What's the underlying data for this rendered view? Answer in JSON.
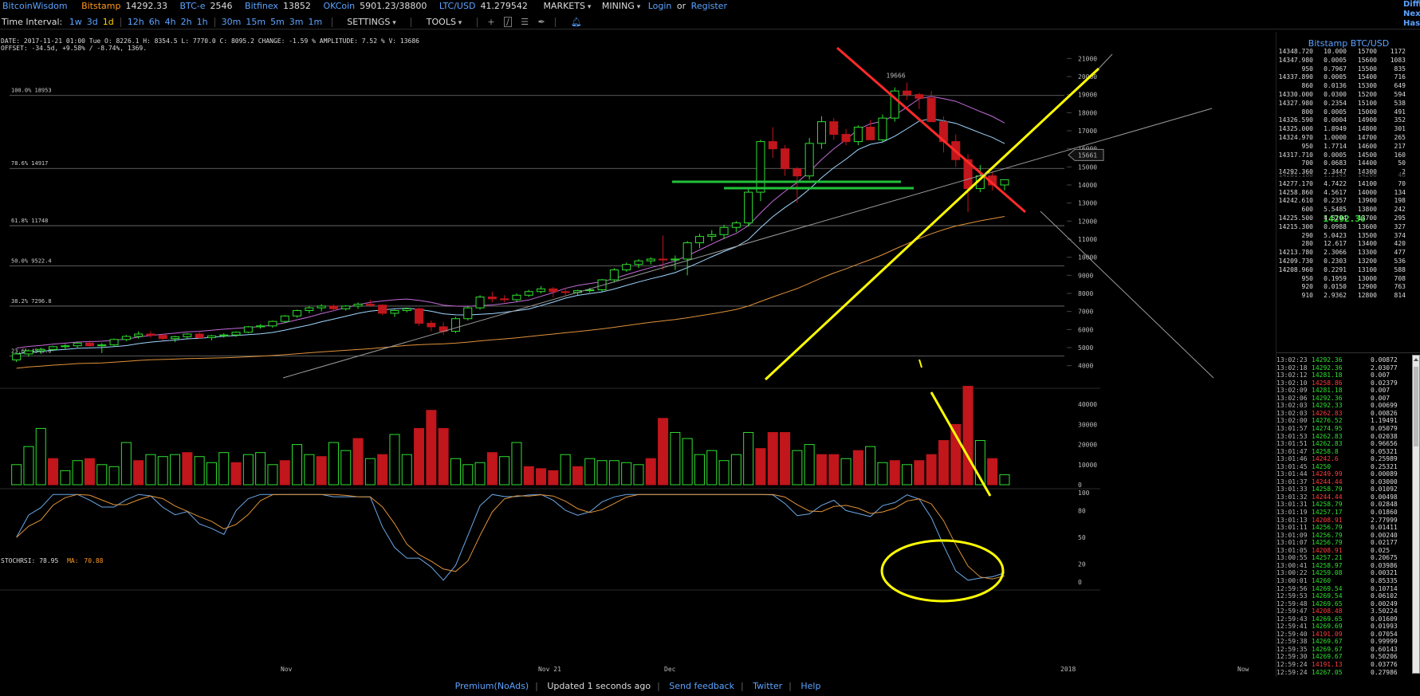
{
  "topbar": {
    "brand": "BitcoinWisdom",
    "markets": [
      {
        "name": "Bitstamp",
        "price": "14292.33"
      },
      {
        "name": "BTC-e",
        "price": "2546"
      },
      {
        "name": "Bitfinex",
        "price": "13852"
      },
      {
        "name": "OKCoin",
        "price": "5901.23/38800"
      },
      {
        "name": "LTC/USD",
        "price": "41.279542"
      }
    ],
    "menu_markets": "MARKETS",
    "menu_mining": "MINING",
    "login": "Login",
    "or": "or",
    "register": "Register"
  },
  "toolbar": {
    "label": "Time Interval:",
    "intervals": [
      "1w",
      "3d",
      "1d",
      "12h",
      "6h",
      "4h",
      "2h",
      "1h",
      "30m",
      "15m",
      "5m",
      "3m",
      "1m"
    ],
    "active_interval": "1d",
    "settings": "SETTINGS",
    "tools": "TOOLS",
    "bell_icon": "bell-icon",
    "draw_icons": [
      "crosshair-icon",
      "line-icon",
      "hline-icon",
      "brush-icon"
    ]
  },
  "info": {
    "ohlc": "DATE: 2017-11-21 01:00 Tue   O: 8226.1   H: 8354.5   L: 7770.0   C: 8095.2   CHANGE: -1.59 %   AMPLITUDE: 7.52 %   V: 13686",
    "offset": "OFFSET: -34.5d, +9.58% / -8.74%, 1369."
  },
  "chart_data": [
    {
      "type": "candlestick",
      "title": "",
      "ylim": [
        3500,
        21500
      ],
      "y_ticks": [
        4000,
        5000,
        6000,
        7000,
        8000,
        9000,
        10000,
        11000,
        12000,
        13000,
        14000,
        15000,
        16000,
        17000,
        18000,
        19000,
        20000,
        21000
      ],
      "x_labels": [
        "Nov",
        "Nov 21",
        "Dec",
        "2018",
        "Now"
      ],
      "fib_levels": [
        {
          "label": "100.0% 18953",
          "value": 18953
        },
        {
          "label": "78.6% 14917",
          "value": 14917
        },
        {
          "label": "61.8% 11748",
          "value": 11748
        },
        {
          "label": "50.0% 9522.4",
          "value": 9522.4
        },
        {
          "label": "38.2% 7296.8",
          "value": 7296.8
        },
        {
          "label": "23.6% 4543.0",
          "value": 4543.0
        }
      ],
      "high_marker": "19666",
      "current_marker": "15661",
      "candles": [
        [
          4320,
          4700,
          4200,
          4650
        ],
        [
          4650,
          4900,
          4500,
          4820
        ],
        [
          4820,
          5000,
          4650,
          4900
        ],
        [
          4900,
          5100,
          4800,
          5050
        ],
        [
          5050,
          5200,
          4900,
          5100
        ],
        [
          5100,
          5300,
          5000,
          5250
        ],
        [
          5250,
          5400,
          5050,
          5100
        ],
        [
          5100,
          5250,
          4700,
          5150
        ],
        [
          5150,
          5500,
          5050,
          5450
        ],
        [
          5450,
          5700,
          5350,
          5620
        ],
        [
          5620,
          5900,
          5500,
          5750
        ],
        [
          5750,
          5900,
          5550,
          5680
        ],
        [
          5680,
          5750,
          5400,
          5500
        ],
        [
          5500,
          5650,
          5300,
          5600
        ],
        [
          5600,
          5800,
          5500,
          5750
        ],
        [
          5750,
          5850,
          5500,
          5550
        ],
        [
          5550,
          5700,
          5400,
          5650
        ],
        [
          5650,
          5800,
          5550,
          5700
        ],
        [
          5700,
          5900,
          5600,
          5850
        ],
        [
          5850,
          6200,
          5800,
          6150
        ],
        [
          6150,
          6300,
          6050,
          6200
        ],
        [
          6200,
          6500,
          6100,
          6450
        ],
        [
          6450,
          6800,
          6350,
          6750
        ],
        [
          6750,
          7100,
          6650,
          7050
        ],
        [
          7050,
          7300,
          6900,
          7200
        ],
        [
          7200,
          7400,
          7000,
          7300
        ],
        [
          7300,
          7400,
          7000,
          7150
        ],
        [
          7150,
          7350,
          7050,
          7300
        ],
        [
          7300,
          7500,
          7150,
          7400
        ],
        [
          7400,
          7650,
          7250,
          7350
        ],
        [
          7350,
          7400,
          6800,
          6900
        ],
        [
          6900,
          7100,
          6700,
          7050
        ],
        [
          7050,
          7200,
          6950,
          7150
        ],
        [
          7150,
          7200,
          6200,
          6350
        ],
        [
          6350,
          6500,
          5900,
          6150
        ],
        [
          6150,
          6400,
          5700,
          5900
        ],
        [
          5900,
          6700,
          5800,
          6600
        ],
        [
          6600,
          7300,
          6500,
          7200
        ],
        [
          7200,
          7900,
          7100,
          7800
        ],
        [
          7800,
          8100,
          7500,
          7700
        ],
        [
          7700,
          7900,
          7500,
          7650
        ],
        [
          7650,
          8000,
          7550,
          7900
        ],
        [
          7900,
          8200,
          7800,
          8100
        ],
        [
          8100,
          8400,
          8000,
          8250
        ],
        [
          8250,
          8354,
          7770,
          8095
        ],
        [
          8095,
          8300,
          7900,
          8050
        ],
        [
          8050,
          8200,
          7900,
          8150
        ],
        [
          8150,
          8300,
          8050,
          8200
        ],
        [
          8200,
          8800,
          8100,
          8750
        ],
        [
          8750,
          9400,
          8600,
          9300
        ],
        [
          9300,
          9700,
          9200,
          9600
        ],
        [
          9600,
          9900,
          9400,
          9800
        ],
        [
          9800,
          10000,
          9600,
          9900
        ],
        [
          9900,
          11200,
          9300,
          9850
        ],
        [
          9850,
          10100,
          9300,
          9900
        ],
        [
          9900,
          10900,
          9000,
          10800
        ],
        [
          10800,
          11300,
          10500,
          11150
        ],
        [
          11150,
          11500,
          10900,
          11250
        ],
        [
          11250,
          11800,
          11000,
          11650
        ],
        [
          11650,
          12000,
          11400,
          11900
        ],
        [
          11900,
          13800,
          11700,
          13600
        ],
        [
          13600,
          16500,
          13100,
          16400
        ],
        [
          16400,
          17200,
          15500,
          16000
        ],
        [
          16000,
          16200,
          14500,
          14900
        ],
        [
          14900,
          15000,
          13000,
          14500
        ],
        [
          14500,
          16600,
          14300,
          16300
        ],
        [
          16300,
          17800,
          16000,
          17500
        ],
        [
          17500,
          17700,
          16500,
          16800
        ],
        [
          16800,
          17100,
          16200,
          16400
        ],
        [
          16400,
          17300,
          16200,
          17200
        ],
        [
          17200,
          17600,
          16600,
          16500
        ],
        [
          16500,
          17900,
          16400,
          17700
        ],
        [
          17700,
          19400,
          17500,
          19200
        ],
        [
          19200,
          19666,
          18700,
          19000
        ],
        [
          19000,
          19100,
          18200,
          18800
        ],
        [
          18800,
          19200,
          17600,
          17500
        ],
        [
          17500,
          17800,
          15800,
          16400
        ],
        [
          16400,
          16800,
          15000,
          15400
        ],
        [
          15400,
          15700,
          12500,
          13800
        ],
        [
          13800,
          15100,
          13600,
          14500
        ],
        [
          14500,
          14700,
          13700,
          14000
        ],
        [
          14000,
          14300,
          13700,
          14292
        ]
      ],
      "volume": {
        "ylim": [
          0,
          48000
        ],
        "y_ticks": [
          0,
          10000,
          20000,
          30000,
          40000
        ],
        "values": [
          10000,
          19000,
          28000,
          13000,
          7000,
          12000,
          13000,
          10000,
          9000,
          21000,
          12000,
          15000,
          14000,
          15000,
          16000,
          14000,
          11000,
          16000,
          11000,
          15000,
          16000,
          10000,
          12000,
          20000,
          15000,
          14000,
          21000,
          17000,
          23000,
          13000,
          15000,
          25000,
          15000,
          28000,
          37000,
          28000,
          13000,
          10000,
          11000,
          16000,
          14000,
          21000,
          9000,
          8000,
          7000,
          15000,
          9000,
          13000,
          12000,
          12000,
          11000,
          10000,
          13000,
          33000,
          26000,
          23000,
          15000,
          17000,
          12000,
          15000,
          26000,
          18000,
          26000,
          26000,
          17000,
          20000,
          15000,
          15000,
          13000,
          17000,
          19000,
          11000,
          12000,
          10000,
          12000,
          15000,
          22000,
          30000,
          49000,
          22000,
          13000,
          5000
        ],
        "up": [
          true,
          true,
          true,
          false,
          true,
          true,
          false,
          true,
          true,
          true,
          false,
          true,
          true,
          true,
          false,
          true,
          true,
          true,
          false,
          true,
          true,
          true,
          false,
          true,
          true,
          false,
          true,
          true,
          false,
          true,
          false,
          true,
          true,
          false,
          false,
          false,
          true,
          true,
          true,
          false,
          true,
          true,
          false,
          false,
          false,
          true,
          false,
          true,
          true,
          true,
          true,
          true,
          false,
          false,
          true,
          true,
          true,
          true,
          true,
          true,
          true,
          false,
          false,
          false,
          true,
          true,
          false,
          false,
          true,
          false,
          true,
          true,
          false,
          true,
          false,
          false,
          false,
          false,
          false,
          true,
          false,
          true
        ]
      },
      "stoch_rsi": {
        "label": "STOCHRSI:",
        "value": "78.95",
        "ma_label": "MA:",
        "ma_value": "70.88",
        "ylim": [
          0,
          100
        ],
        "y_ticks": [
          0,
          20,
          50,
          80,
          100
        ]
      }
    }
  ],
  "orderbook": {
    "title": "Bitstamp BTC/USD",
    "asks": [
      [
        "14348.720",
        "10.000",
        "15700",
        "1172"
      ],
      [
        "14347.980",
        "0.0005",
        "15600",
        "1083"
      ],
      [
        "950",
        "0.7967",
        "15500",
        "835"
      ],
      [
        "14337.890",
        "0.0005",
        "15400",
        "716"
      ],
      [
        "860",
        "0.0136",
        "15300",
        "649"
      ],
      [
        "14330.000",
        "0.0300",
        "15200",
        "594"
      ],
      [
        "14327.980",
        "0.2354",
        "15100",
        "538"
      ],
      [
        "800",
        "0.0005",
        "15000",
        "491"
      ],
      [
        "14326.590",
        "0.0004",
        "14900",
        "352"
      ],
      [
        "14325.000",
        "1.8949",
        "14800",
        "301"
      ],
      [
        "14324.970",
        "1.0000",
        "14700",
        "265"
      ],
      [
        "950",
        "1.7714",
        "14600",
        "217"
      ],
      [
        "14317.710",
        "0.0005",
        "14500",
        "160"
      ],
      [
        "700",
        "0.0683",
        "14400",
        "50"
      ],
      [
        "14292.360",
        "2.3447",
        "14300",
        "2"
      ]
    ],
    "last_price": "14292.36",
    "bids": [
      [
        "14281.180",
        "1.2145",
        "14200",
        "46"
      ],
      [
        "14277.170",
        "4.7422",
        "14100",
        "70"
      ],
      [
        "14258.860",
        "4.5617",
        "14000",
        "134"
      ],
      [
        "14242.610",
        "0.2357",
        "13900",
        "198"
      ],
      [
        "600",
        "5.5485",
        "13800",
        "242"
      ],
      [
        "14225.500",
        "4.5204",
        "13700",
        "295"
      ],
      [
        "14215.300",
        "0.0988",
        "13600",
        "327"
      ],
      [
        "290",
        "5.0423",
        "13500",
        "374"
      ],
      [
        "280",
        "12.617",
        "13400",
        "420"
      ],
      [
        "14213.780",
        "2.3066",
        "13300",
        "477"
      ],
      [
        "14209.730",
        "0.2303",
        "13200",
        "536"
      ],
      [
        "14208.960",
        "0.2291",
        "13100",
        "588"
      ],
      [
        "950",
        "0.1959",
        "13000",
        "708"
      ],
      [
        "920",
        "0.0150",
        "12900",
        "763"
      ],
      [
        "910",
        "2.9362",
        "12800",
        "814"
      ]
    ]
  },
  "trades": [
    [
      "13:02:23",
      "14292.36",
      "0.00872",
      "buy"
    ],
    [
      "13:02:18",
      "14292.36",
      "2.03077",
      "buy"
    ],
    [
      "13:02:12",
      "14281.18",
      "0.007",
      "buy"
    ],
    [
      "13:02:10",
      "14258.86",
      "0.02379",
      "sell"
    ],
    [
      "13:02:09",
      "14281.18",
      "0.007",
      "buy"
    ],
    [
      "13:02:06",
      "14292.36",
      "0.007",
      "buy"
    ],
    [
      "13:02:03",
      "14292.33",
      "0.00699",
      "buy"
    ],
    [
      "13:02:03",
      "14262.83",
      "0.00826",
      "sell"
    ],
    [
      "13:02:00",
      "14276.52",
      "1.19491",
      "buy"
    ],
    [
      "13:01:57",
      "14274.95",
      "0.05079",
      "buy"
    ],
    [
      "13:01:53",
      "14262.83",
      "0.02038",
      "buy"
    ],
    [
      "13:01:51",
      "14262.83",
      "0.96656",
      "buy"
    ],
    [
      "13:01:47",
      "14258.8",
      "0.05321",
      "buy"
    ],
    [
      "13:01:46",
      "14242.6",
      "0.25989",
      "sell"
    ],
    [
      "13:01:45",
      "14250",
      "0.25321",
      "buy"
    ],
    [
      "13:01:44",
      "14249.99",
      "0.00089",
      "sell"
    ],
    [
      "13:01:37",
      "14244.44",
      "0.03000",
      "sell"
    ],
    [
      "13:01:33",
      "14258.79",
      "0.01092",
      "buy"
    ],
    [
      "13:01:32",
      "14244.44",
      "0.00498",
      "sell"
    ],
    [
      "13:01:31",
      "14258.79",
      "0.02848",
      "buy"
    ],
    [
      "13:01:19",
      "14257.17",
      "0.01860",
      "buy"
    ],
    [
      "13:01:13",
      "14208.91",
      "2.77999",
      "sell"
    ],
    [
      "13:01:11",
      "14256.79",
      "0.01411",
      "buy"
    ],
    [
      "13:01:09",
      "14256.79",
      "0.00240",
      "buy"
    ],
    [
      "13:01:07",
      "14256.79",
      "0.02177",
      "buy"
    ],
    [
      "13:01:05",
      "14208.91",
      "0.025",
      "sell"
    ],
    [
      "13:00:55",
      "14257.21",
      "0.20675",
      "buy"
    ],
    [
      "13:00:41",
      "14258.97",
      "0.03986",
      "buy"
    ],
    [
      "13:00:22",
      "14259.08",
      "0.00321",
      "buy"
    ],
    [
      "13:00:01",
      "14260",
      "0.85335",
      "buy"
    ],
    [
      "12:59:56",
      "14269.54",
      "0.10714",
      "buy"
    ],
    [
      "12:59:53",
      "14269.54",
      "0.06102",
      "buy"
    ],
    [
      "12:59:48",
      "14269.65",
      "0.00249",
      "buy"
    ],
    [
      "12:59:47",
      "14208.48",
      "3.50224",
      "sell"
    ],
    [
      "12:59:43",
      "14269.65",
      "0.01609",
      "buy"
    ],
    [
      "12:59:41",
      "14269.69",
      "0.01993",
      "buy"
    ],
    [
      "12:59:40",
      "14191.09",
      "0.07054",
      "sell"
    ],
    [
      "12:59:38",
      "14269.67",
      "0.99999",
      "buy"
    ],
    [
      "12:59:35",
      "14269.67",
      "0.60143",
      "buy"
    ],
    [
      "12:59:30",
      "14269.67",
      "0.50206",
      "buy"
    ],
    [
      "12:59:24",
      "14191.13",
      "0.03776",
      "sell"
    ],
    [
      "12:59:24",
      "14267.05",
      "0.27986",
      "buy"
    ]
  ],
  "farright": [
    "Diffi",
    "Next",
    "Hash"
  ],
  "footer": {
    "premium": "Premium(NoAds)",
    "status": "Updated 1 seconds ago",
    "feedback": "Send feedback",
    "twitter": "Twitter",
    "help": "Help"
  },
  "colors": {
    "up": "#2fe02f",
    "down": "#c0161c",
    "link": "#5ba3ff",
    "annotation_yellow": "#ffff00",
    "annotation_green": "#22c03a",
    "annotation_red": "#ff2a2a"
  }
}
